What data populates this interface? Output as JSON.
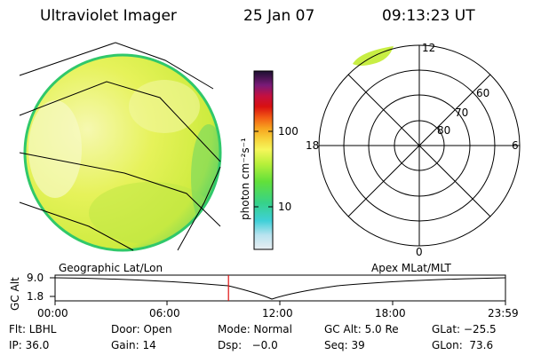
{
  "header": {
    "title": "Ultraviolet Imager",
    "date": "25 Jan 07",
    "time": "09:13:23 UT"
  },
  "colorbar": {
    "label": "photon cm⁻²s⁻¹",
    "ticks": [
      "100",
      "10"
    ],
    "scale": "log"
  },
  "polar": {
    "mlt_labels": {
      "top": "12",
      "left": "18",
      "right": "6",
      "bottom": "0"
    },
    "lat_labels": [
      "60",
      "70",
      "80"
    ]
  },
  "timeline": {
    "title_left": "Geographic Lat/Lon",
    "title_right": "Apex MLat/MLT",
    "y_axis_label": "GC Alt",
    "y_ticks": [
      "9.0",
      "1.8"
    ],
    "x_ticks": [
      "00:00",
      "06:00",
      "12:00",
      "18:00",
      "23:59"
    ],
    "current_time_fraction": 0.385
  },
  "status": {
    "row1": [
      "Flt: LBHL",
      "Door: Open",
      "Mode: Normal",
      "GC Alt: 5.0 Re",
      "GLat: −25.5"
    ],
    "row2": [
      "IP: 36.0",
      "Gain: 14",
      "Dsp:   −0.0",
      "Seq: 39",
      "GLon:  73.6"
    ]
  },
  "colors": {
    "disk_fill": "#dff04a",
    "disk_bright": "#f3f7a2",
    "disk_edge": "#22c75a",
    "marker_red": "#e01010"
  }
}
